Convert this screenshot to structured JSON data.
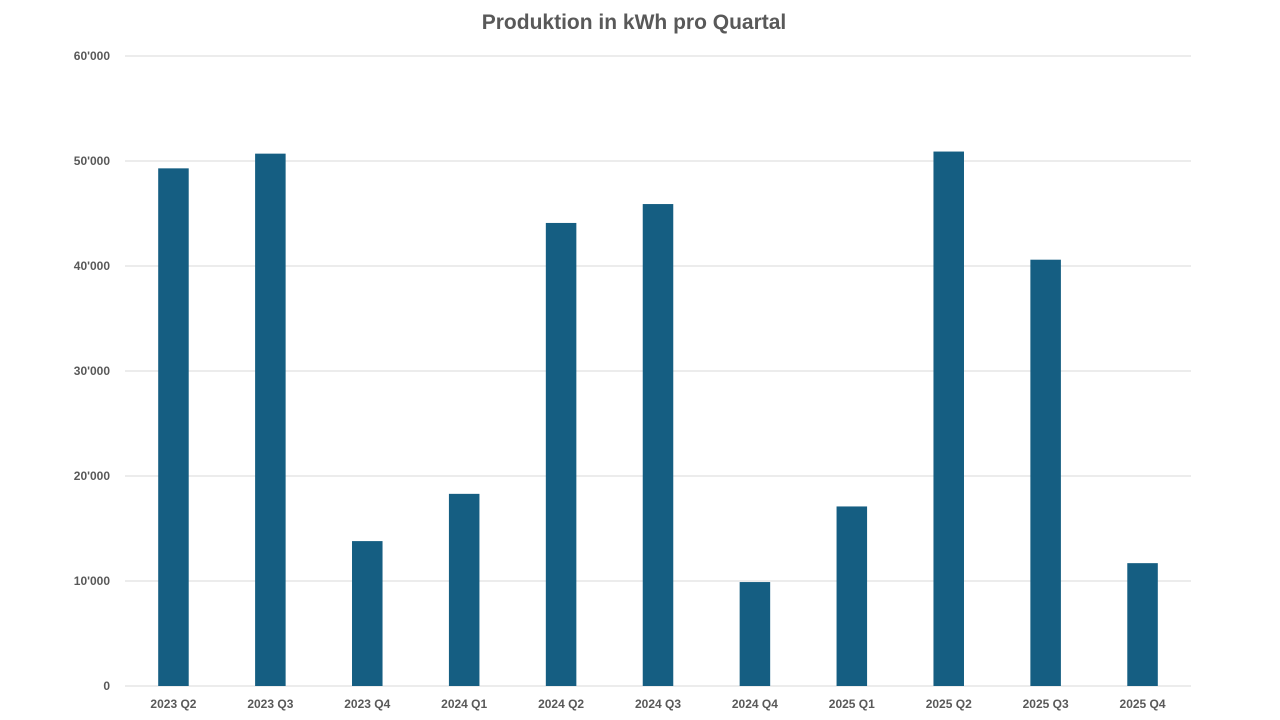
{
  "chart_data": {
    "type": "bar",
    "title": "Produktion in kWh pro Quartal",
    "xlabel": "",
    "ylabel": "",
    "categories": [
      "2023 Q2",
      "2023 Q3",
      "2023 Q4",
      "2024 Q1",
      "2024 Q2",
      "2024 Q3",
      "2024 Q4",
      "2025 Q1",
      "2025 Q2",
      "2025 Q3",
      "2025 Q4"
    ],
    "values": [
      49300,
      50700,
      13800,
      18300,
      44100,
      45900,
      9900,
      17100,
      50900,
      40600,
      11700
    ],
    "ylim": [
      0,
      60000
    ],
    "yticks": [
      0,
      10000,
      20000,
      30000,
      40000,
      50000,
      60000
    ],
    "ytick_labels": [
      "0",
      "10'000",
      "20'000",
      "30'000",
      "40'000",
      "50'000",
      "60'000"
    ],
    "grid": true,
    "legend": "none",
    "color": "#155e82"
  }
}
